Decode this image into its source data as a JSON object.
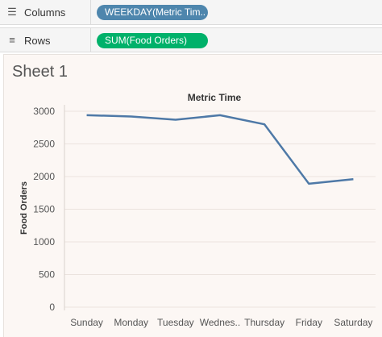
{
  "shelves": {
    "columns": {
      "label": "Columns",
      "icon": "columns-icon",
      "pill": "WEEKDAY(Metric Tim..",
      "pill_color": "#4e86ad"
    },
    "rows": {
      "label": "Rows",
      "icon": "rows-icon",
      "pill": "SUM(Food Orders)",
      "pill_color": "#00b16a"
    }
  },
  "sheet": {
    "title": "Sheet 1"
  },
  "chart_data": {
    "type": "line",
    "title": "Metric Time",
    "xlabel": "",
    "ylabel": "Food Orders",
    "categories": [
      "Sunday",
      "Monday",
      "Tuesday",
      "Wednes..",
      "Thursday",
      "Friday",
      "Saturday"
    ],
    "series": [
      {
        "values": [
          2940,
          2920,
          2870,
          2940,
          2800,
          1890,
          1960
        ],
        "color": "#4e79a7"
      }
    ],
    "ylim": [
      0,
      3000
    ],
    "yticks": [
      0,
      500,
      1000,
      1500,
      2000,
      2500,
      3000
    ],
    "grid": true
  }
}
